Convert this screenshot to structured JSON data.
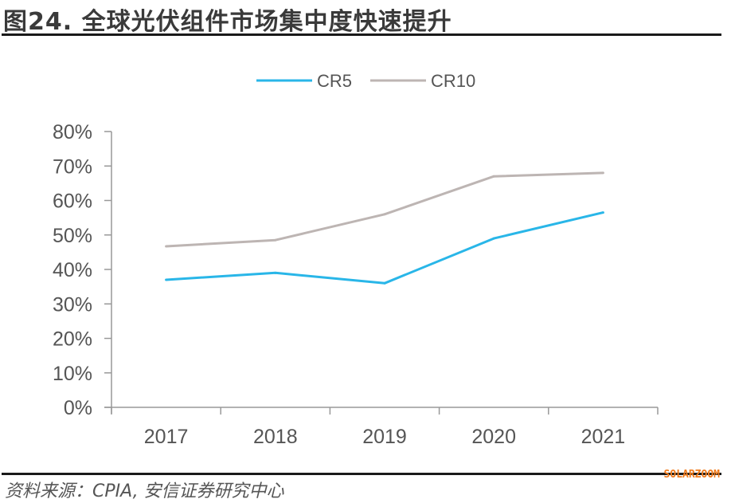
{
  "header": {
    "title": "图24. 全球光伏组件市场集中度快速提升"
  },
  "footer": {
    "source": "资料来源：CPIA, 安信证券研究中心",
    "watermark": "SOLARZOOM"
  },
  "chart_data": {
    "type": "line",
    "title": "图24. 全球光伏组件市场集中度快速提升",
    "xlabel": "",
    "ylabel": "",
    "categories": [
      "2017",
      "2018",
      "2019",
      "2020",
      "2021"
    ],
    "series": [
      {
        "name": "CR5",
        "color": "#29b6e8",
        "values": [
          37,
          39,
          36,
          49,
          56.5
        ]
      },
      {
        "name": "CR10",
        "color": "#bdb5b3",
        "values": [
          46.7,
          48.5,
          56,
          67,
          68
        ]
      }
    ],
    "ylim": [
      0,
      80
    ],
    "yticks": [
      0,
      10,
      20,
      30,
      40,
      50,
      60,
      70,
      80
    ],
    "ytick_labels": [
      "0%",
      "10%",
      "20%",
      "30%",
      "40%",
      "50%",
      "60%",
      "70%",
      "80%"
    ],
    "grid": false,
    "legend": "top-center"
  }
}
